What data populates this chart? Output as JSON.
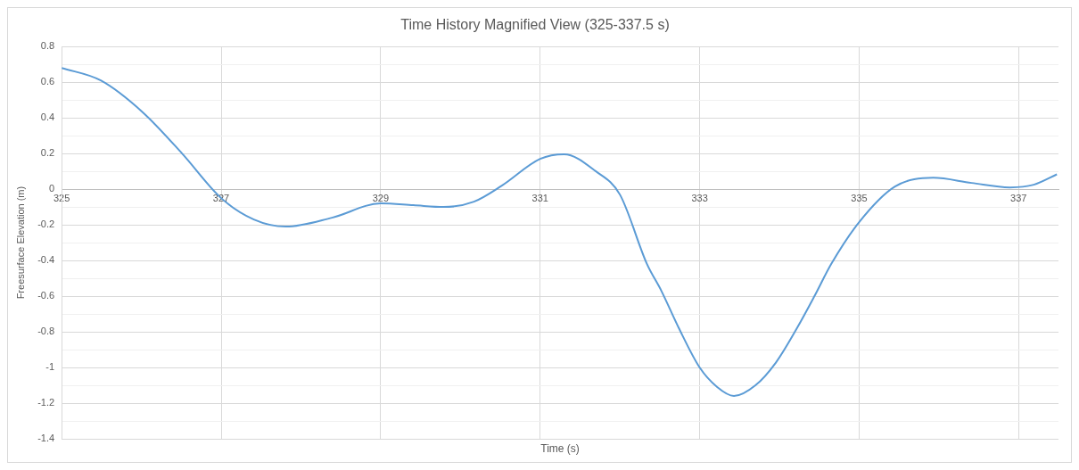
{
  "chart_data": {
    "type": "line",
    "title": "Time History Magnified View (325-337.5 s)",
    "xlabel": "Time (s)",
    "ylabel": "Freesurface Elevation (m)",
    "xlim": [
      325,
      337.5
    ],
    "xticks": [
      325,
      327,
      329,
      331,
      333,
      335,
      337
    ],
    "ylim": [
      -1.4,
      0.8
    ],
    "yticks": [
      -1.4,
      {
        "value": -1.3,
        "label": null
      },
      -1.2,
      {
        "value": -1.1,
        "label": null
      },
      -1,
      {
        "value": -0.9,
        "label": null
      },
      -0.8,
      {
        "value": -0.7,
        "label": null
      },
      -0.6,
      {
        "value": -0.5,
        "label": null
      },
      -0.4,
      {
        "value": -0.3,
        "label": null
      },
      -0.2,
      {
        "value": -0.1,
        "label": null
      },
      0,
      {
        "value": 0.1,
        "label": null
      },
      0.2,
      {
        "value": 0.3,
        "label": null
      },
      0.4,
      {
        "value": 0.5,
        "label": null
      },
      0.6,
      {
        "value": 0.7,
        "label": null
      },
      0.8
    ],
    "grid": true,
    "legend": false,
    "marker": "none",
    "line_style": "solid",
    "series": [
      {
        "color": "#5b9bd5",
        "x": [
          325,
          325.49,
          326.02,
          326.51,
          327,
          327.41,
          327.81,
          328.39,
          329,
          329.41,
          329.79,
          330.17,
          330.52,
          331,
          331.3,
          331.7,
          332,
          332.34,
          332.52,
          332.74,
          333,
          333.22,
          333.43,
          333.7,
          333.96,
          334.22,
          334.44,
          334.65,
          335,
          335.45,
          335.93,
          336.41,
          336.89,
          337.19,
          337.48
        ],
        "values": [
          0.68,
          0.61,
          0.43,
          0.2,
          -0.05,
          -0.17,
          -0.21,
          -0.16,
          -0.08,
          -0.09,
          -0.1,
          -0.07,
          0.02,
          0.17,
          0.196,
          0.1,
          -0.03,
          -0.42,
          -0.57,
          -0.78,
          -1,
          -1.11,
          -1.16,
          -1.1,
          -0.97,
          -0.78,
          -0.6,
          -0.42,
          -0.185,
          0.015,
          0.064,
          0.035,
          0.01,
          0.025,
          0.083
        ]
      }
    ]
  }
}
